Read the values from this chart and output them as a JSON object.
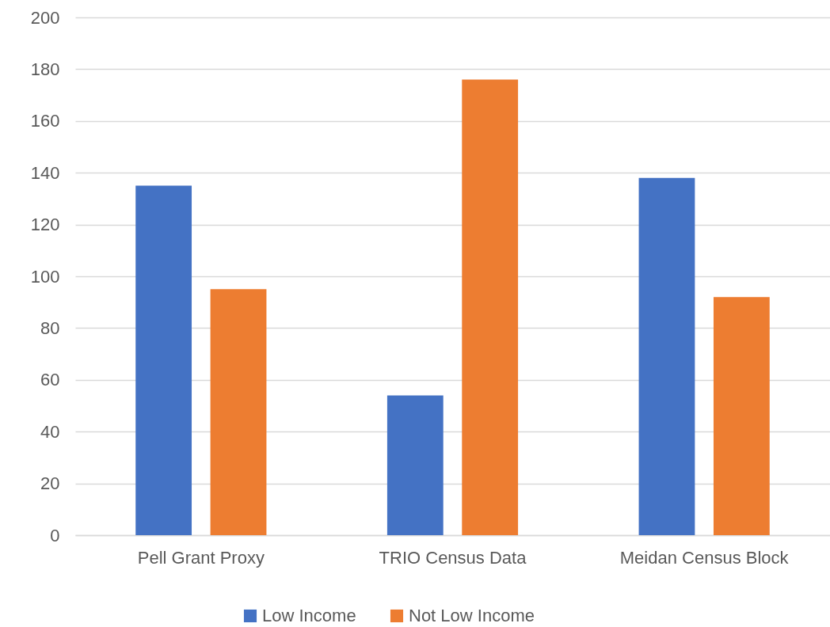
{
  "chart_data": {
    "type": "bar",
    "categories": [
      "Pell Grant Proxy",
      "TRIO Census Data",
      "Meidan Census Block"
    ],
    "series": [
      {
        "name": "Low Income",
        "color": "#4472c4",
        "values": [
          135,
          54,
          138
        ]
      },
      {
        "name": "Not Low Income",
        "color": "#ed7d31",
        "values": [
          95,
          176,
          92
        ]
      }
    ],
    "ylim": [
      0,
      200
    ],
    "yticks": [
      0,
      20,
      40,
      60,
      80,
      100,
      120,
      140,
      160,
      180,
      200
    ],
    "grid": "y",
    "legend": "bottom"
  }
}
